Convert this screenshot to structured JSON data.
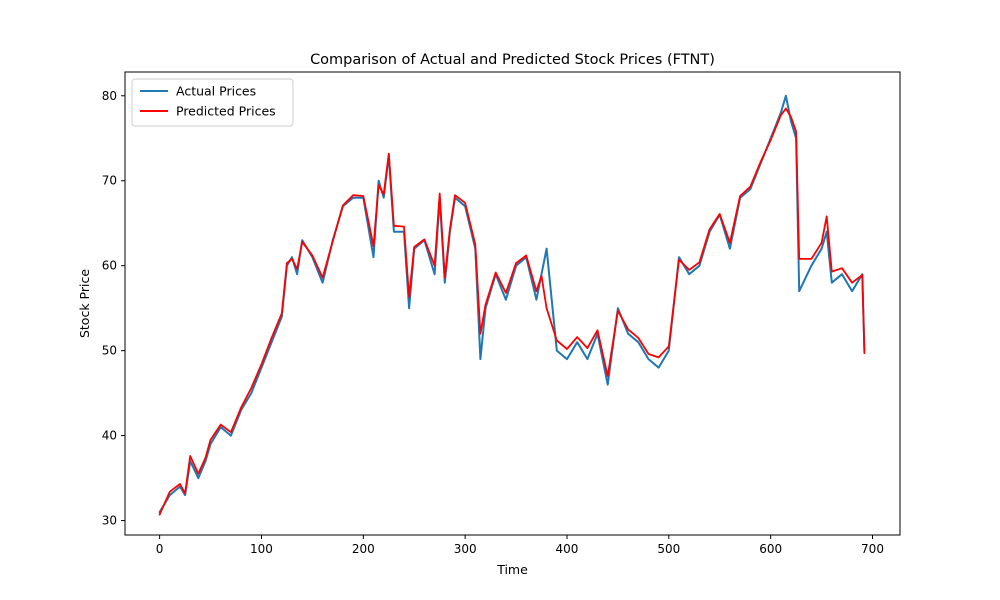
{
  "chart_data": {
    "type": "line",
    "title": "Comparison of Actual and Predicted Stock Prices (FTNT)",
    "xlabel": "Time",
    "ylabel": "Stock Price",
    "xlim": [
      -34,
      727
    ],
    "ylim": [
      28.3,
      82.8
    ],
    "xticks": [
      0,
      100,
      200,
      300,
      400,
      500,
      600,
      700
    ],
    "yticks": [
      30,
      40,
      50,
      60,
      70,
      80
    ],
    "grid": false,
    "legend_position": "top-left",
    "series": [
      {
        "name": "Actual Prices",
        "color": "#1f77b4",
        "points": [
          [
            0,
            31
          ],
          [
            10,
            33
          ],
          [
            20,
            34
          ],
          [
            25,
            33
          ],
          [
            30,
            37
          ],
          [
            38,
            35
          ],
          [
            45,
            37
          ],
          [
            50,
            39
          ],
          [
            60,
            41
          ],
          [
            70,
            40
          ],
          [
            80,
            43
          ],
          [
            90,
            45
          ],
          [
            100,
            48
          ],
          [
            110,
            51
          ],
          [
            120,
            54
          ],
          [
            125,
            60
          ],
          [
            130,
            61
          ],
          [
            135,
            59
          ],
          [
            140,
            63
          ],
          [
            150,
            61
          ],
          [
            160,
            58
          ],
          [
            170,
            63
          ],
          [
            180,
            67
          ],
          [
            190,
            68
          ],
          [
            200,
            68
          ],
          [
            210,
            61
          ],
          [
            215,
            70
          ],
          [
            220,
            68
          ],
          [
            225,
            73
          ],
          [
            230,
            64
          ],
          [
            240,
            64
          ],
          [
            245,
            55
          ],
          [
            250,
            62
          ],
          [
            260,
            63
          ],
          [
            270,
            59
          ],
          [
            275,
            68
          ],
          [
            280,
            58
          ],
          [
            285,
            64
          ],
          [
            290,
            68
          ],
          [
            300,
            67
          ],
          [
            310,
            62
          ],
          [
            315,
            49
          ],
          [
            320,
            55
          ],
          [
            330,
            59
          ],
          [
            340,
            56
          ],
          [
            350,
            60
          ],
          [
            360,
            61
          ],
          [
            370,
            56
          ],
          [
            375,
            59
          ],
          [
            380,
            62
          ],
          [
            390,
            50
          ],
          [
            400,
            49
          ],
          [
            410,
            51
          ],
          [
            420,
            49
          ],
          [
            430,
            52
          ],
          [
            440,
            46
          ],
          [
            450,
            55
          ],
          [
            460,
            52
          ],
          [
            470,
            51
          ],
          [
            480,
            49
          ],
          [
            490,
            48
          ],
          [
            500,
            50
          ],
          [
            510,
            61
          ],
          [
            520,
            59
          ],
          [
            530,
            60
          ],
          [
            540,
            64
          ],
          [
            550,
            66
          ],
          [
            560,
            62
          ],
          [
            570,
            68
          ],
          [
            580,
            69
          ],
          [
            590,
            72
          ],
          [
            600,
            75
          ],
          [
            610,
            78
          ],
          [
            615,
            80
          ],
          [
            620,
            77
          ],
          [
            625,
            75
          ],
          [
            628,
            57
          ],
          [
            640,
            60
          ],
          [
            650,
            62
          ],
          [
            655,
            64
          ],
          [
            660,
            58
          ],
          [
            670,
            59
          ],
          [
            680,
            57
          ],
          [
            690,
            59
          ],
          [
            692,
            50
          ]
        ]
      },
      {
        "name": "Predicted Prices",
        "color": "#ff0000",
        "points": [
          [
            0,
            30.7
          ],
          [
            10,
            33.4
          ],
          [
            20,
            34.3
          ],
          [
            25,
            33.2
          ],
          [
            30,
            37.6
          ],
          [
            38,
            35.5
          ],
          [
            45,
            37.4
          ],
          [
            50,
            39.5
          ],
          [
            60,
            41.3
          ],
          [
            70,
            40.4
          ],
          [
            80,
            43.3
          ],
          [
            90,
            45.6
          ],
          [
            100,
            48.4
          ],
          [
            110,
            51.5
          ],
          [
            120,
            54.4
          ],
          [
            125,
            60.3
          ],
          [
            130,
            60.8
          ],
          [
            135,
            59.6
          ],
          [
            140,
            62.8
          ],
          [
            150,
            61.2
          ],
          [
            160,
            58.6
          ],
          [
            170,
            62.9
          ],
          [
            180,
            67.1
          ],
          [
            190,
            68.3
          ],
          [
            200,
            68.2
          ],
          [
            210,
            62.3
          ],
          [
            215,
            69.5
          ],
          [
            220,
            68.4
          ],
          [
            225,
            73.2
          ],
          [
            230,
            64.7
          ],
          [
            240,
            64.6
          ],
          [
            245,
            56.3
          ],
          [
            250,
            62.2
          ],
          [
            260,
            63.1
          ],
          [
            270,
            60
          ],
          [
            275,
            68.5
          ],
          [
            280,
            58.6
          ],
          [
            285,
            64.3
          ],
          [
            290,
            68.3
          ],
          [
            300,
            67.4
          ],
          [
            310,
            62.5
          ],
          [
            315,
            52
          ],
          [
            320,
            55.4
          ],
          [
            330,
            59.2
          ],
          [
            340,
            56.8
          ],
          [
            350,
            60.3
          ],
          [
            360,
            61.2
          ],
          [
            370,
            57
          ],
          [
            375,
            58.8
          ],
          [
            380,
            55
          ],
          [
            390,
            51.2
          ],
          [
            400,
            50.2
          ],
          [
            410,
            51.6
          ],
          [
            420,
            50.3
          ],
          [
            430,
            52.4
          ],
          [
            440,
            47
          ],
          [
            450,
            54.7
          ],
          [
            460,
            52.5
          ],
          [
            470,
            51.5
          ],
          [
            480,
            49.6
          ],
          [
            490,
            49.2
          ],
          [
            500,
            50.5
          ],
          [
            510,
            60.7
          ],
          [
            520,
            59.5
          ],
          [
            530,
            60.4
          ],
          [
            540,
            64.3
          ],
          [
            550,
            66.1
          ],
          [
            560,
            62.7
          ],
          [
            570,
            68.2
          ],
          [
            580,
            69.3
          ],
          [
            590,
            72.2
          ],
          [
            600,
            74.8
          ],
          [
            610,
            77.7
          ],
          [
            615,
            78.5
          ],
          [
            620,
            77.5
          ],
          [
            625,
            75.8
          ],
          [
            628,
            60.8
          ],
          [
            640,
            60.8
          ],
          [
            650,
            62.7
          ],
          [
            655,
            65.8
          ],
          [
            660,
            59.3
          ],
          [
            670,
            59.7
          ],
          [
            680,
            58
          ],
          [
            690,
            58.9
          ],
          [
            692,
            49.7
          ]
        ]
      }
    ]
  }
}
